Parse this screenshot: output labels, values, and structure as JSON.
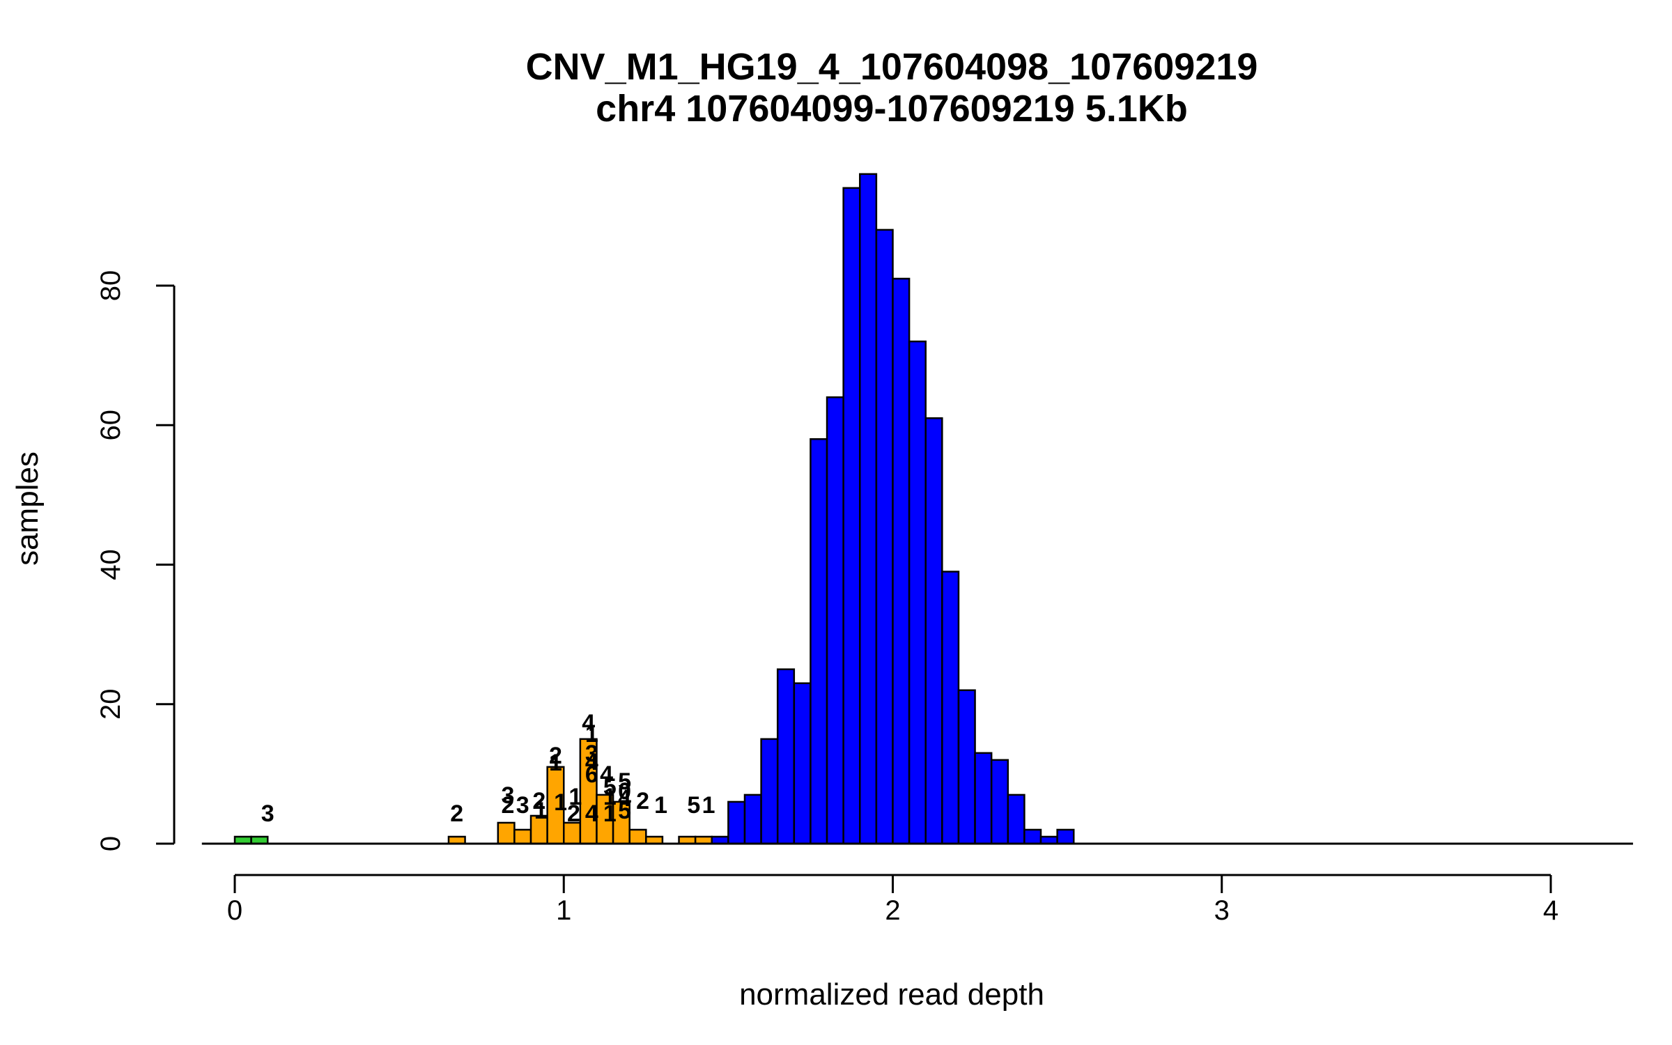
{
  "chart_data": {
    "type": "bar",
    "title": "CNV_M1_HG19_4_107604098_107609219",
    "subtitle": "chr4 107604099-107609219 5.1Kb",
    "xlabel": "normalized read depth",
    "ylabel": "samples",
    "xlim": [
      -0.1,
      4.25
    ],
    "ylim": [
      0,
      96
    ],
    "x_ticks": [
      "0",
      "1",
      "2",
      "3",
      "4"
    ],
    "y_ticks": [
      "0",
      "20",
      "40",
      "60",
      "80"
    ],
    "bin_width": 0.05,
    "colors": {
      "green": "#33cc33",
      "orange": "#ffa500",
      "blue": "#0000ff"
    },
    "series": [
      {
        "color": "green",
        "bins": [
          {
            "x": 0.025,
            "y": 1
          },
          {
            "x": 0.075,
            "y": 1
          }
        ]
      },
      {
        "color": "orange",
        "bins": [
          {
            "x": 0.675,
            "y": 1
          },
          {
            "x": 0.825,
            "y": 3
          },
          {
            "x": 0.875,
            "y": 2
          },
          {
            "x": 0.925,
            "y": 4
          },
          {
            "x": 0.975,
            "y": 11
          },
          {
            "x": 1.025,
            "y": 3
          },
          {
            "x": 1.075,
            "y": 15
          },
          {
            "x": 1.125,
            "y": 7
          },
          {
            "x": 1.175,
            "y": 6
          },
          {
            "x": 1.225,
            "y": 2
          },
          {
            "x": 1.275,
            "y": 1
          },
          {
            "x": 1.375,
            "y": 1
          },
          {
            "x": 1.425,
            "y": 1
          }
        ]
      },
      {
        "color": "blue",
        "bins": [
          {
            "x": 1.475,
            "y": 1
          },
          {
            "x": 1.525,
            "y": 6
          },
          {
            "x": 1.575,
            "y": 7
          },
          {
            "x": 1.625,
            "y": 15
          },
          {
            "x": 1.675,
            "y": 25
          },
          {
            "x": 1.725,
            "y": 23
          },
          {
            "x": 1.775,
            "y": 58
          },
          {
            "x": 1.825,
            "y": 64
          },
          {
            "x": 1.875,
            "y": 94
          },
          {
            "x": 1.925,
            "y": 96
          },
          {
            "x": 1.975,
            "y": 88
          },
          {
            "x": 2.025,
            "y": 81
          },
          {
            "x": 2.075,
            "y": 72
          },
          {
            "x": 2.125,
            "y": 61
          },
          {
            "x": 2.175,
            "y": 39
          },
          {
            "x": 2.225,
            "y": 22
          },
          {
            "x": 2.275,
            "y": 13
          },
          {
            "x": 2.325,
            "y": 12
          },
          {
            "x": 2.375,
            "y": 7
          },
          {
            "x": 2.425,
            "y": 2
          },
          {
            "x": 2.475,
            "y": 1
          },
          {
            "x": 2.525,
            "y": 2
          }
        ]
      }
    ],
    "annotations": [
      {
        "text": "3",
        "x": 0.1,
        "y": 3.2
      },
      {
        "text": "2",
        "x": 0.675,
        "y": 3.2
      },
      {
        "text": "3",
        "x": 0.83,
        "y": 5.8
      },
      {
        "text": "2",
        "x": 0.83,
        "y": 4.4
      },
      {
        "text": "3",
        "x": 0.875,
        "y": 4.4
      },
      {
        "text": "2",
        "x": 0.925,
        "y": 5.0
      },
      {
        "text": "1",
        "x": 0.93,
        "y": 3.6
      },
      {
        "text": "2",
        "x": 0.975,
        "y": 11.5
      },
      {
        "text": "1",
        "x": 0.975,
        "y": 10.5
      },
      {
        "text": "1",
        "x": 0.99,
        "y": 4.8
      },
      {
        "text": "1",
        "x": 1.035,
        "y": 5.6
      },
      {
        "text": "2",
        "x": 1.03,
        "y": 3.2
      },
      {
        "text": "4",
        "x": 1.075,
        "y": 16.2
      },
      {
        "text": "1",
        "x": 1.085,
        "y": 14.6
      },
      {
        "text": "3",
        "x": 1.085,
        "y": 11.8
      },
      {
        "text": "4",
        "x": 1.085,
        "y": 10.6
      },
      {
        "text": "6",
        "x": 1.085,
        "y": 8.8
      },
      {
        "text": "4",
        "x": 1.085,
        "y": 3.2
      },
      {
        "text": "4",
        "x": 1.13,
        "y": 8.8
      },
      {
        "text": "5",
        "x": 1.14,
        "y": 7.0
      },
      {
        "text": "1",
        "x": 1.14,
        "y": 5.6
      },
      {
        "text": "1",
        "x": 1.14,
        "y": 3.2
      },
      {
        "text": "5",
        "x": 1.185,
        "y": 7.8
      },
      {
        "text": "0",
        "x": 1.185,
        "y": 6.4
      },
      {
        "text": "4",
        "x": 1.185,
        "y": 5.4
      },
      {
        "text": "5",
        "x": 1.185,
        "y": 3.6
      },
      {
        "text": "2",
        "x": 1.24,
        "y": 5.0
      },
      {
        "text": "1",
        "x": 1.295,
        "y": 4.4
      },
      {
        "text": "5",
        "x": 1.395,
        "y": 4.4
      },
      {
        "text": "1",
        "x": 1.44,
        "y": 4.4
      }
    ]
  }
}
